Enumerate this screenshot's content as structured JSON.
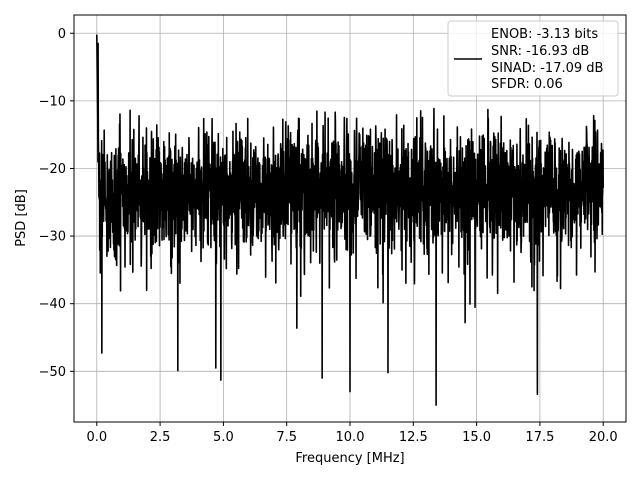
{
  "chart_data": {
    "type": "line",
    "title": "",
    "xlabel": "Frequency [MHz]",
    "ylabel": "PSD [dB]",
    "xlim": [
      -0.9,
      20.9
    ],
    "ylim": [
      -57.5,
      2.7
    ],
    "xticks": [
      0,
      2.5,
      5,
      7.5,
      10,
      12.5,
      15,
      17.5,
      20
    ],
    "xtick_labels": [
      "0.0",
      "2.5",
      "5.0",
      "7.5",
      "10.0",
      "12.5",
      "15.0",
      "17.5",
      "20.0"
    ],
    "yticks": [
      0,
      -10,
      -20,
      -30,
      -40,
      -50
    ],
    "ytick_labels": [
      "0",
      "−10",
      "−20",
      "−30",
      "−40",
      "−50"
    ],
    "grid": true,
    "legend_position": "top-right",
    "line_color": "#000000",
    "series": [
      {
        "legend_lines": [
          "ENOB: -3.13 bits",
          "SNR: -16.93 dB",
          "SINAD: -17.09 dB",
          "SFDR: 0.06"
        ],
        "x_range": [
          0,
          20
        ],
        "approx_floor_db": -23,
        "peaks": [
          {
            "x": 0.0,
            "y": -0.2
          },
          {
            "x": 0.05,
            "y": -1.5
          },
          {
            "x": 0.2,
            "y": -47.3
          },
          {
            "x": 3.2,
            "y": -49.9
          },
          {
            "x": 4.7,
            "y": -49.5
          },
          {
            "x": 4.9,
            "y": -51.3
          },
          {
            "x": 8.9,
            "y": -51.0
          },
          {
            "x": 10.0,
            "y": -53.0
          },
          {
            "x": 11.5,
            "y": -50.2
          },
          {
            "x": 13.4,
            "y": -55.0
          },
          {
            "x": 17.4,
            "y": -53.4
          }
        ]
      }
    ]
  }
}
